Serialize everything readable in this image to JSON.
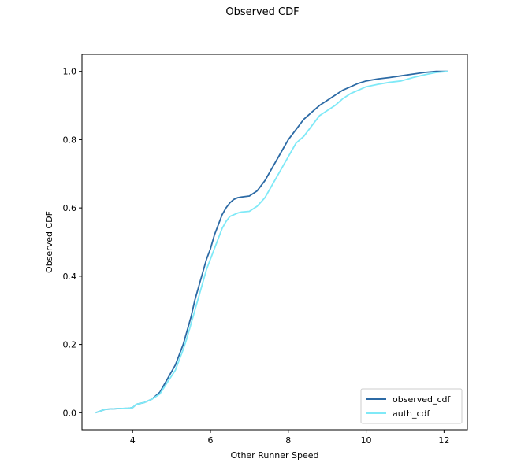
{
  "chart_data": {
    "type": "line",
    "title": "Observed CDF",
    "xlabel": "Other Runner Speed",
    "ylabel": "Observed CDF",
    "xlim": [
      2.7,
      12.6
    ],
    "ylim": [
      -0.05,
      1.05
    ],
    "xticks": [
      4,
      6,
      8,
      10,
      12
    ],
    "yticks": [
      0.0,
      0.2,
      0.4,
      0.6,
      0.8,
      1.0
    ],
    "xtick_labels": [
      "4",
      "6",
      "8",
      "10",
      "12"
    ],
    "ytick_labels": [
      "0.0",
      "0.2",
      "0.4",
      "0.6",
      "0.8",
      "1.0"
    ],
    "grid": false,
    "legend": {
      "position": "lower-right",
      "entries": [
        "observed_cdf",
        "auth_cdf"
      ]
    },
    "series": [
      {
        "name": "observed_cdf",
        "color": "#2c6aa5",
        "x": [
          3.05,
          3.3,
          3.6,
          3.9,
          4.0,
          4.1,
          4.3,
          4.5,
          4.7,
          4.9,
          5.1,
          5.2,
          5.3,
          5.4,
          5.5,
          5.6,
          5.7,
          5.8,
          5.9,
          6.0,
          6.1,
          6.2,
          6.3,
          6.4,
          6.5,
          6.6,
          6.7,
          6.8,
          7.0,
          7.2,
          7.4,
          7.6,
          7.8,
          8.0,
          8.2,
          8.4,
          8.6,
          8.8,
          9.0,
          9.2,
          9.4,
          9.6,
          9.8,
          10.0,
          10.3,
          10.6,
          10.9,
          11.2,
          11.5,
          11.8,
          12.1
        ],
        "values": [
          0.0,
          0.01,
          0.012,
          0.013,
          0.015,
          0.025,
          0.03,
          0.04,
          0.06,
          0.1,
          0.14,
          0.17,
          0.2,
          0.24,
          0.28,
          0.33,
          0.37,
          0.41,
          0.45,
          0.48,
          0.52,
          0.55,
          0.58,
          0.6,
          0.615,
          0.625,
          0.63,
          0.632,
          0.635,
          0.65,
          0.68,
          0.72,
          0.76,
          0.8,
          0.83,
          0.86,
          0.88,
          0.9,
          0.915,
          0.93,
          0.945,
          0.955,
          0.965,
          0.972,
          0.978,
          0.982,
          0.987,
          0.992,
          0.997,
          1.0,
          1.0
        ]
      },
      {
        "name": "auth_cdf",
        "color": "#7fe9f7",
        "x": [
          3.05,
          3.3,
          3.6,
          3.9,
          4.0,
          4.1,
          4.3,
          4.5,
          4.7,
          4.9,
          5.1,
          5.2,
          5.3,
          5.4,
          5.5,
          5.6,
          5.7,
          5.8,
          5.9,
          6.0,
          6.1,
          6.2,
          6.3,
          6.4,
          6.5,
          6.6,
          6.7,
          6.8,
          7.0,
          7.2,
          7.4,
          7.6,
          7.8,
          8.0,
          8.2,
          8.4,
          8.6,
          8.8,
          9.0,
          9.2,
          9.4,
          9.6,
          9.8,
          10.0,
          10.3,
          10.6,
          10.9,
          11.2,
          11.5,
          11.8,
          12.1
        ],
        "values": [
          0.0,
          0.01,
          0.012,
          0.013,
          0.015,
          0.025,
          0.03,
          0.04,
          0.055,
          0.09,
          0.125,
          0.155,
          0.185,
          0.22,
          0.26,
          0.3,
          0.34,
          0.38,
          0.42,
          0.45,
          0.48,
          0.51,
          0.54,
          0.56,
          0.575,
          0.58,
          0.585,
          0.588,
          0.59,
          0.605,
          0.63,
          0.67,
          0.71,
          0.75,
          0.79,
          0.81,
          0.84,
          0.87,
          0.885,
          0.9,
          0.92,
          0.935,
          0.945,
          0.955,
          0.962,
          0.968,
          0.972,
          0.982,
          0.99,
          0.997,
          1.0
        ]
      }
    ]
  }
}
